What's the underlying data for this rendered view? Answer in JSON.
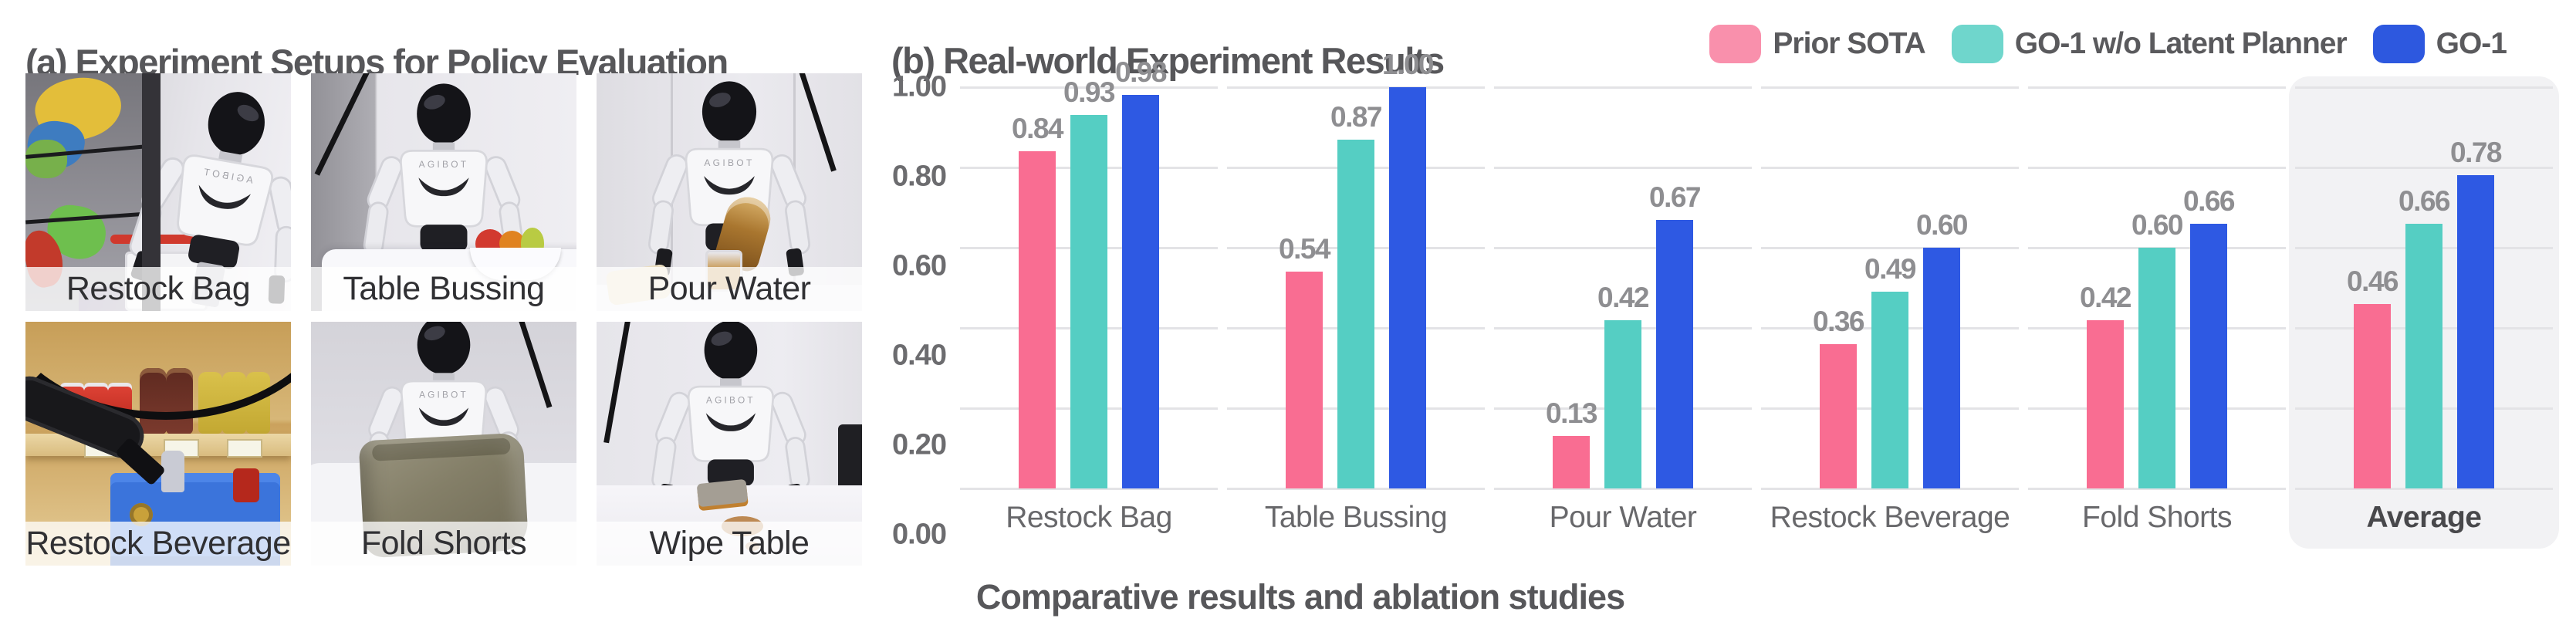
{
  "panel_a": {
    "title": "(a) Experiment Setups for Policy Evaluation",
    "robot_logo": "AGIBOT",
    "photos": [
      {
        "label": "Restock Bag"
      },
      {
        "label": "Table Bussing"
      },
      {
        "label": "Pour Water"
      },
      {
        "label": "Restock Beverage"
      },
      {
        "label": "Fold Shorts"
      },
      {
        "label": "Wipe Table"
      }
    ]
  },
  "panel_b": {
    "title": "(b) Real-world Experiment Results",
    "caption": "Comparative results and ablation studies",
    "legend": [
      {
        "label": "Prior SOTA",
        "color": "#F990AC"
      },
      {
        "label": "GO-1 w/o Latent Planner",
        "color": "#6FD6CC"
      },
      {
        "label": "GO-1",
        "color": "#2D58DF"
      }
    ],
    "y_ticks": [
      "1.00",
      "0.80",
      "0.60",
      "0.40",
      "0.20",
      "0.00"
    ]
  },
  "chart_data": {
    "type": "bar",
    "title": "(b) Real-world Experiment Results",
    "categories": [
      "Restock Bag",
      "Table Bussing",
      "Pour Water",
      "Restock Beverage",
      "Fold Shorts",
      "Average"
    ],
    "series": [
      {
        "name": "Prior SOTA",
        "color": "#F96D92",
        "values": [
          0.84,
          0.54,
          0.13,
          0.36,
          0.42,
          0.46
        ]
      },
      {
        "name": "GO-1 w/o Latent Planner",
        "color": "#55CEC3",
        "values": [
          0.93,
          0.87,
          0.42,
          0.49,
          0.6,
          0.66
        ]
      },
      {
        "name": "GO-1",
        "color": "#2E59E3",
        "values": [
          0.98,
          1.0,
          0.67,
          0.6,
          0.66,
          0.78
        ]
      }
    ],
    "xlabel": "",
    "ylabel": "",
    "ylim": [
      0,
      1.0
    ],
    "y_tick_step": 0.2,
    "grid": "horizontal",
    "legend_position": "top-right",
    "highlighted_category": "Average",
    "value_label_format": "0.00"
  },
  "colors": {
    "grid": "#E3E3E6",
    "highlight_bg": "#F2F2F4",
    "title_text": "#57575A",
    "tick_text": "#6C6C6F",
    "value_text": "#8E8E91",
    "category_text": "#68686B"
  }
}
